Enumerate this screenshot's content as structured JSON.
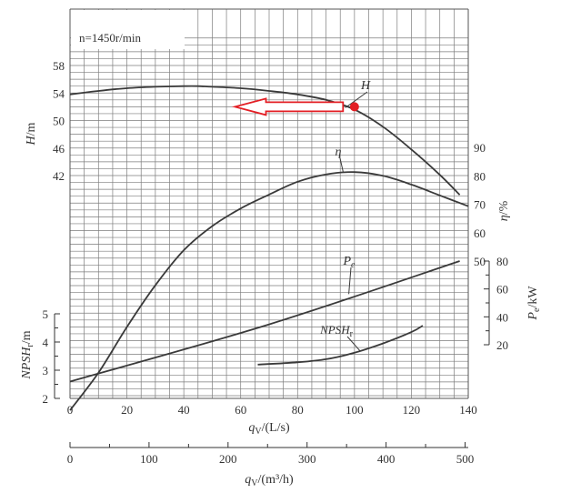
{
  "chart_data": {
    "type": "line",
    "speed_label": "n=1450r/min",
    "x": {
      "label": "q_V/(L/s)",
      "label_main": "q",
      "label_sub": "V",
      "label_tail": "/(L/s)",
      "range": [
        0,
        140
      ],
      "ticks": [
        "0",
        "20",
        "40",
        "60",
        "80",
        "100",
        "120",
        "140"
      ]
    },
    "x2": {
      "label": "q_V/(m³/h)",
      "label_main": "q",
      "label_sub": "V",
      "label_tail": "/(m³/h)",
      "range": [
        0,
        504
      ],
      "ticks": [
        "0",
        "100",
        "200",
        "300",
        "400",
        "500"
      ]
    },
    "axes": {
      "H": {
        "label_main": "H",
        "label_tail": "/m",
        "range": [
          35.9,
          58
        ],
        "ticks": [
          "42",
          "46",
          "50",
          "54",
          "58"
        ]
      },
      "eta": {
        "label_main": "η",
        "label_tail": "/%",
        "range": [
          50,
          90
        ],
        "ticks": [
          "50",
          "60",
          "70",
          "80",
          "90"
        ]
      },
      "Pe": {
        "label_main": "P",
        "label_sub": "e",
        "label_tail": "/kW",
        "range": [
          20,
          80
        ],
        "ticks": [
          "20",
          "40",
          "60",
          "80"
        ]
      },
      "NPSH": {
        "label_main": "NPSH",
        "label_sub": "r",
        "label_tail": "/m",
        "range": [
          2,
          5
        ],
        "ticks": [
          "2",
          "3",
          "4",
          "5"
        ]
      }
    },
    "series": [
      {
        "name": "H",
        "name_main": "H",
        "name_sub": "",
        "axis": "H",
        "x": [
          0,
          10,
          20,
          30,
          40,
          45,
          50,
          60,
          70,
          80,
          90,
          100,
          110,
          120,
          130,
          137
        ],
        "y": [
          53.8,
          54.3,
          54.7,
          54.9,
          55.0,
          55.0,
          54.9,
          54.7,
          54.3,
          53.8,
          53.0,
          51.6,
          49.1,
          45.8,
          42.1,
          39.2
        ]
      },
      {
        "name": "η",
        "name_main": "η",
        "name_sub": "",
        "axis": "eta",
        "x": [
          0,
          10,
          20,
          30,
          40,
          50,
          60,
          70,
          80,
          90,
          100,
          110,
          120,
          130,
          140
        ],
        "y": [
          -2.5,
          10.7,
          26.8,
          41.5,
          53.8,
          62.3,
          68.5,
          73.4,
          77.9,
          80.5,
          81.3,
          80.0,
          76.9,
          73.1,
          69.3
        ]
      },
      {
        "name": "Pe",
        "name_main": "P",
        "name_sub": "e",
        "axis": "Pe",
        "x": [
          0,
          70,
          137
        ],
        "y": [
          -6.4,
          34.6,
          80.0
        ]
      },
      {
        "name": "NPSHr",
        "name_main": "NPSH",
        "name_sub": "r",
        "axis": "NPSH",
        "x": [
          66,
          80,
          90,
          100,
          110,
          120,
          124
        ],
        "y": [
          3.2,
          3.28,
          3.39,
          3.62,
          3.95,
          4.35,
          4.58
        ]
      }
    ],
    "marker": {
      "x": 100,
      "y": 52.0,
      "color": "#e31e24"
    },
    "arrow": {
      "from_x": 96,
      "to_x": 58,
      "y": 52.0,
      "color": "#e31e24"
    },
    "grid": true
  }
}
